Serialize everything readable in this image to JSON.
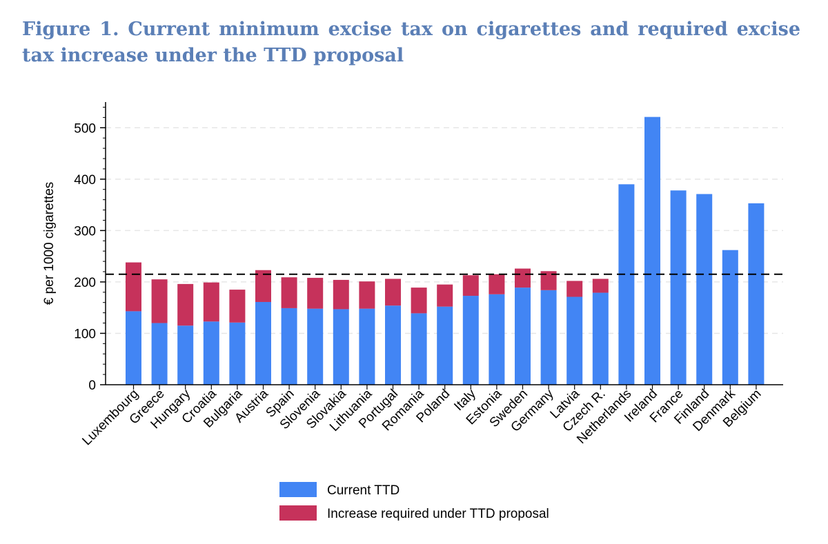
{
  "title": "Figure 1. Current minimum excise tax on cigarettes and required excise tax increase under the TTD proposal",
  "colors": {
    "current": "#4285f4",
    "increase": "#c6325b",
    "threshold_line": "#000000",
    "grid": "#e6e6e6"
  },
  "chart_data": {
    "type": "bar",
    "stacked": true,
    "title": "",
    "xlabel": "",
    "ylabel": "€ per 1000 cigarettes",
    "ylim": [
      0,
      550
    ],
    "yticks": [
      0,
      100,
      200,
      300,
      400,
      500
    ],
    "grid": "horizontal dashed",
    "legend_position": "bottom",
    "reference_line": {
      "y": 215,
      "style": "dashed"
    },
    "categories": [
      "Luxembourg",
      "Greece",
      "Hungary",
      "Croatia",
      "Bulgaria",
      "Austria",
      "Spain",
      "Slovenia",
      "Slovakia",
      "Lithuania",
      "Portugal",
      "Romania",
      "Poland",
      "Italy",
      "Estonia",
      "Sweden",
      "Germany",
      "Latvia",
      "Czech R.",
      "Netherlands",
      "Ireland",
      "France",
      "Finland",
      "Denmark",
      "Belgium"
    ],
    "series": [
      {
        "name": "Current TTD",
        "values": [
          143,
          120,
          115,
          123,
          121,
          161,
          149,
          148,
          147,
          148,
          154,
          139,
          152,
          173,
          176,
          189,
          184,
          171,
          179,
          390,
          521,
          378,
          371,
          262,
          353
        ]
      },
      {
        "name": "Increase required under TTD proposal",
        "values": [
          95,
          85,
          81,
          76,
          64,
          62,
          60,
          60,
          57,
          53,
          52,
          50,
          43,
          40,
          39,
          37,
          37,
          31,
          27,
          0,
          0,
          0,
          0,
          0,
          0
        ]
      }
    ]
  }
}
